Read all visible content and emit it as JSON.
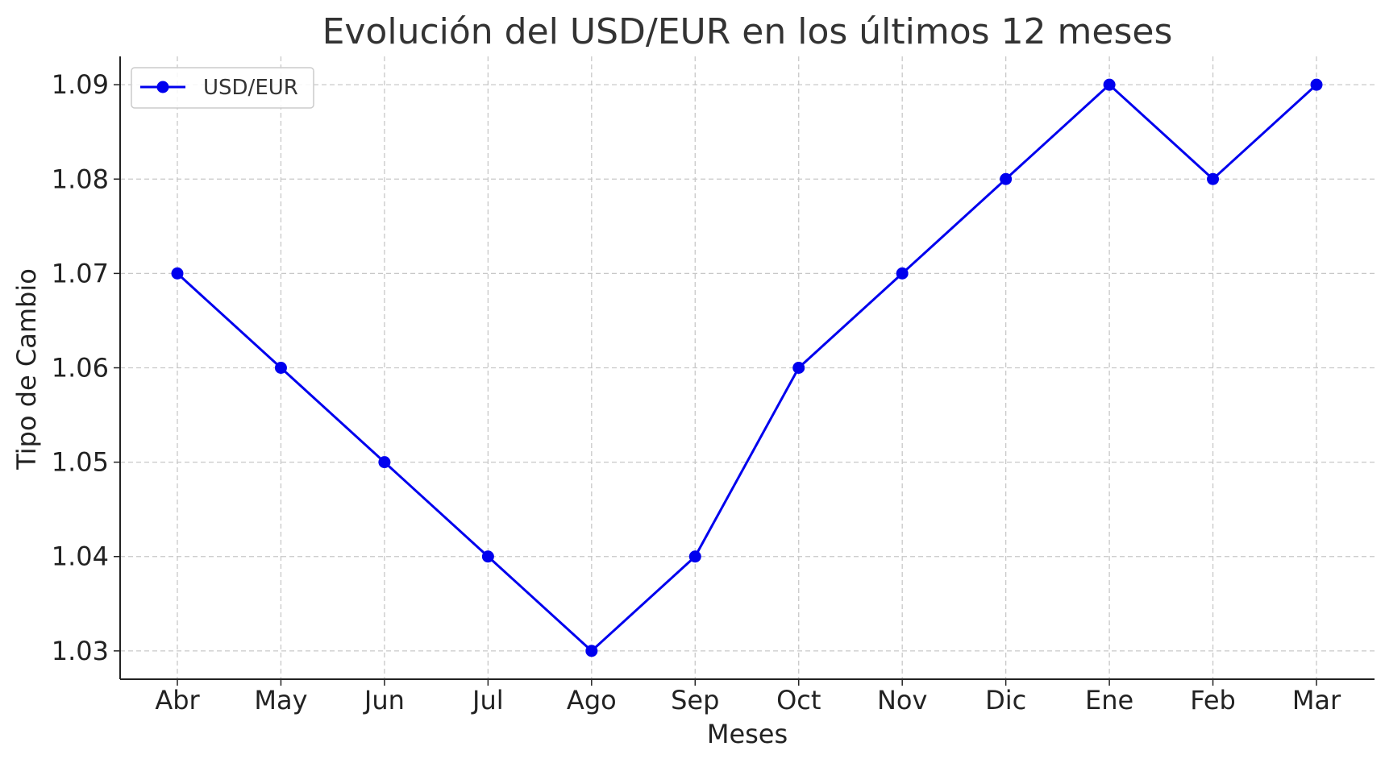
{
  "chart_data": {
    "type": "line",
    "title": "Evolución del USD/EUR en los últimos 12 meses",
    "xlabel": "Meses",
    "ylabel": "Tipo de Cambio",
    "categories": [
      "Abr",
      "May",
      "Jun",
      "Jul",
      "Ago",
      "Sep",
      "Oct",
      "Nov",
      "Dic",
      "Ene",
      "Feb",
      "Mar"
    ],
    "series": [
      {
        "name": "USD/EUR",
        "values": [
          1.07,
          1.06,
          1.05,
          1.04,
          1.03,
          1.04,
          1.06,
          1.07,
          1.08,
          1.09,
          1.08,
          1.09
        ],
        "color": "#0000ee",
        "marker": "circle"
      }
    ],
    "yticks": [
      1.03,
      1.04,
      1.05,
      1.06,
      1.07,
      1.08,
      1.09
    ],
    "ylim": [
      1.027,
      1.093
    ],
    "grid": true,
    "legend_position": "top-left"
  }
}
